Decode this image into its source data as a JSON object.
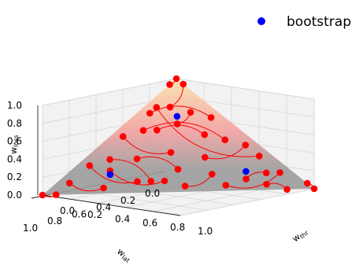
{
  "chart_data": {
    "type": "scatter",
    "projection": "3d",
    "legend": {
      "position": "top-right",
      "entries": [
        {
          "name": "bootstrap",
          "color": "#0000ff"
        }
      ]
    },
    "axes": {
      "x": {
        "name": "w_lat",
        "ticks": [
          "0.0",
          "0.2",
          "0.4",
          "0.6",
          "0.8",
          "1.0"
        ],
        "range": [
          0,
          1
        ]
      },
      "y": {
        "name": "w_thr",
        "ticks": [
          "0.0",
          "0.2",
          "0.4",
          "0.6",
          "0.8",
          "1.0"
        ],
        "range": [
          0,
          1
        ]
      },
      "z": {
        "name": "w_loss",
        "ticks": [
          "0.0",
          "0.2",
          "0.4",
          "0.6",
          "0.8",
          "1.0"
        ],
        "range": [
          0,
          1
        ]
      }
    },
    "grid": true,
    "surface": {
      "type": "simplex",
      "colormap": [
        "#9a9a9a",
        "#f6a0a0",
        "#fff8a8"
      ]
    },
    "series": [
      {
        "name": "bootstrap",
        "color": "#0000ff",
        "points": [
          {
            "x": 0.167,
            "y": 0.167,
            "z": 0.667
          },
          {
            "x": 0.667,
            "y": 0.167,
            "z": 0.167
          },
          {
            "x": 0.167,
            "y": 0.667,
            "z": 0.167
          }
        ]
      },
      {
        "name": "",
        "color": "#ff0000",
        "points": [
          {
            "x": 0.0,
            "y": 0.0,
            "z": 1.0
          },
          {
            "x": 0.05,
            "y": 0.0,
            "z": 0.95
          },
          {
            "x": 0.0,
            "y": 0.05,
            "z": 0.95
          },
          {
            "x": 0.15,
            "y": 0.1,
            "z": 0.75
          },
          {
            "x": 0.1,
            "y": 0.2,
            "z": 0.7
          },
          {
            "x": 0.2,
            "y": 0.2,
            "z": 0.6
          },
          {
            "x": 0.25,
            "y": 0.05,
            "z": 0.7
          },
          {
            "x": 0.05,
            "y": 0.3,
            "z": 0.65
          },
          {
            "x": 0.3,
            "y": 0.15,
            "z": 0.55
          },
          {
            "x": 0.15,
            "y": 0.35,
            "z": 0.5
          },
          {
            "x": 0.35,
            "y": 0.3,
            "z": 0.35
          },
          {
            "x": 0.45,
            "y": 0.05,
            "z": 0.5
          },
          {
            "x": 0.5,
            "y": 0.2,
            "z": 0.3
          },
          {
            "x": 0.4,
            "y": 0.4,
            "z": 0.2
          },
          {
            "x": 0.05,
            "y": 0.55,
            "z": 0.4
          },
          {
            "x": 0.25,
            "y": 0.45,
            "z": 0.3
          },
          {
            "x": 0.6,
            "y": 0.3,
            "z": 0.1
          },
          {
            "x": 0.7,
            "y": 0.05,
            "z": 0.25
          },
          {
            "x": 0.75,
            "y": 0.2,
            "z": 0.05
          },
          {
            "x": 0.85,
            "y": 0.05,
            "z": 0.1
          },
          {
            "x": 0.95,
            "y": 0.05,
            "z": 0.0
          },
          {
            "x": 1.0,
            "y": 0.0,
            "z": 0.0
          },
          {
            "x": 0.6,
            "y": 0.1,
            "z": 0.3
          },
          {
            "x": 0.55,
            "y": 0.35,
            "z": 0.1
          },
          {
            "x": 0.3,
            "y": 0.55,
            "z": 0.15
          },
          {
            "x": 0.45,
            "y": 0.5,
            "z": 0.05
          },
          {
            "x": 0.2,
            "y": 0.7,
            "z": 0.1
          },
          {
            "x": 0.1,
            "y": 0.75,
            "z": 0.15
          },
          {
            "x": 0.05,
            "y": 0.8,
            "z": 0.15
          },
          {
            "x": 0.3,
            "y": 0.65,
            "z": 0.05
          },
          {
            "x": 0.15,
            "y": 0.8,
            "z": 0.05
          },
          {
            "x": 0.1,
            "y": 0.9,
            "z": 0.0
          },
          {
            "x": 0.0,
            "y": 0.95,
            "z": 0.05
          },
          {
            "x": 0.0,
            "y": 1.0,
            "z": 0.0
          },
          {
            "x": 0.05,
            "y": 0.65,
            "z": 0.3
          },
          {
            "x": 0.2,
            "y": 0.05,
            "z": 0.75
          },
          {
            "x": 0.35,
            "y": 0.1,
            "z": 0.55
          },
          {
            "x": 0.1,
            "y": 0.45,
            "z": 0.45
          },
          {
            "x": 0.5,
            "y": 0.4,
            "z": 0.1
          },
          {
            "x": 0.65,
            "y": 0.15,
            "z": 0.2
          }
        ]
      }
    ],
    "trajectories_note": ""
  }
}
